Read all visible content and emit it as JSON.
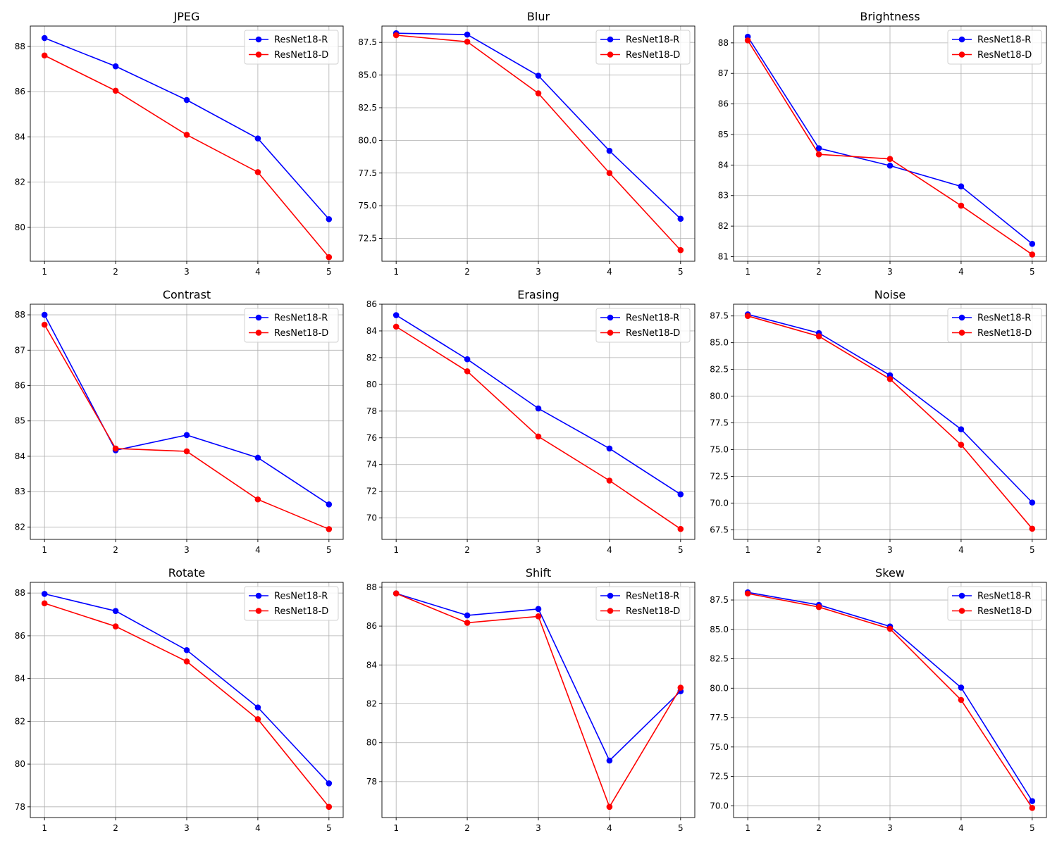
{
  "colors": {
    "ResNet18-R": "#0000ff",
    "ResNet18-D": "#ff0000"
  },
  "chart_data": [
    {
      "type": "line",
      "title": "JPEG",
      "x": [
        1,
        2,
        3,
        4,
        5
      ],
      "xlim": [
        0.8,
        5.2
      ],
      "ylim": [
        78.5,
        88.9
      ],
      "yticks": [
        "80",
        "82",
        "84",
        "86",
        "88"
      ],
      "series": [
        {
          "name": "ResNet18-R",
          "values": [
            88.37,
            87.12,
            85.63,
            83.93,
            80.36
          ]
        },
        {
          "name": "ResNet18-D",
          "values": [
            87.6,
            86.04,
            84.09,
            82.44,
            78.68
          ]
        }
      ]
    },
    {
      "type": "line",
      "title": "Blur",
      "x": [
        1,
        2,
        3,
        4,
        5
      ],
      "xlim": [
        0.8,
        5.2
      ],
      "ylim": [
        70.75,
        88.75
      ],
      "yticks": [
        "72.5",
        "75.0",
        "77.5",
        "80.0",
        "82.5",
        "85.0",
        "87.5"
      ],
      "series": [
        {
          "name": "ResNet18-R",
          "values": [
            88.2,
            88.1,
            84.95,
            79.2,
            74.0
          ]
        },
        {
          "name": "ResNet18-D",
          "values": [
            88.05,
            87.55,
            83.6,
            77.5,
            71.6
          ]
        }
      ]
    },
    {
      "type": "line",
      "title": "Brightness",
      "x": [
        1,
        2,
        3,
        4,
        5
      ],
      "xlim": [
        0.8,
        5.2
      ],
      "ylim": [
        80.85,
        88.55
      ],
      "yticks": [
        "81",
        "82",
        "83",
        "84",
        "85",
        "86",
        "87",
        "88"
      ],
      "series": [
        {
          "name": "ResNet18-R",
          "values": [
            88.2,
            84.55,
            83.98,
            83.3,
            81.42
          ]
        },
        {
          "name": "ResNet18-D",
          "values": [
            88.08,
            84.35,
            84.2,
            82.67,
            81.07
          ]
        }
      ]
    },
    {
      "type": "line",
      "title": "Contrast",
      "x": [
        1,
        2,
        3,
        4,
        5
      ],
      "xlim": [
        0.8,
        5.2
      ],
      "ylim": [
        81.65,
        88.3
      ],
      "yticks": [
        "82",
        "83",
        "84",
        "85",
        "86",
        "87",
        "88"
      ],
      "series": [
        {
          "name": "ResNet18-R",
          "values": [
            88.0,
            84.17,
            84.6,
            83.96,
            82.64
          ]
        },
        {
          "name": "ResNet18-D",
          "values": [
            87.72,
            84.22,
            84.14,
            82.78,
            81.94
          ]
        }
      ]
    },
    {
      "type": "line",
      "title": "Erasing",
      "x": [
        1,
        2,
        3,
        4,
        5
      ],
      "xlim": [
        0.8,
        5.2
      ],
      "ylim": [
        68.4,
        86.0
      ],
      "yticks": [
        "70",
        "72",
        "74",
        "76",
        "78",
        "80",
        "82",
        "84",
        "86"
      ],
      "series": [
        {
          "name": "ResNet18-R",
          "values": [
            85.18,
            81.88,
            78.2,
            75.2,
            71.77
          ]
        },
        {
          "name": "ResNet18-D",
          "values": [
            84.32,
            80.98,
            76.1,
            72.8,
            69.18
          ]
        }
      ]
    },
    {
      "type": "line",
      "title": "Noise",
      "x": [
        1,
        2,
        3,
        4,
        5
      ],
      "xlim": [
        0.8,
        5.2
      ],
      "ylim": [
        66.6,
        88.6
      ],
      "yticks": [
        "67.5",
        "70.0",
        "72.5",
        "75.0",
        "77.5",
        "80.0",
        "82.5",
        "85.0",
        "87.5"
      ],
      "series": [
        {
          "name": "ResNet18-R",
          "values": [
            87.65,
            85.9,
            81.95,
            76.9,
            70.05
          ]
        },
        {
          "name": "ResNet18-D",
          "values": [
            87.5,
            85.6,
            81.6,
            75.45,
            67.6
          ]
        }
      ]
    },
    {
      "type": "line",
      "title": "Rotate",
      "x": [
        1,
        2,
        3,
        4,
        5
      ],
      "xlim": [
        0.8,
        5.2
      ],
      "ylim": [
        77.5,
        88.5
      ],
      "yticks": [
        "78",
        "80",
        "82",
        "84",
        "86",
        "88"
      ],
      "series": [
        {
          "name": "ResNet18-R",
          "values": [
            87.96,
            87.16,
            85.33,
            82.65,
            79.1
          ]
        },
        {
          "name": "ResNet18-D",
          "values": [
            87.52,
            86.44,
            84.8,
            82.1,
            78.0
          ]
        }
      ]
    },
    {
      "type": "line",
      "title": "Shift",
      "x": [
        1,
        2,
        3,
        4,
        5
      ],
      "xlim": [
        0.8,
        5.2
      ],
      "ylim": [
        76.15,
        88.25
      ],
      "yticks": [
        "78",
        "80",
        "82",
        "84",
        "86",
        "88"
      ],
      "series": [
        {
          "name": "ResNet18-R",
          "values": [
            87.68,
            86.55,
            86.88,
            79.08,
            82.65
          ]
        },
        {
          "name": "ResNet18-D",
          "values": [
            87.68,
            86.17,
            86.5,
            76.7,
            82.83
          ]
        }
      ]
    },
    {
      "type": "line",
      "title": "Skew",
      "x": [
        1,
        2,
        3,
        4,
        5
      ],
      "xlim": [
        0.8,
        5.2
      ],
      "ylim": [
        69.0,
        89.0
      ],
      "yticks": [
        "70.0",
        "72.5",
        "75.0",
        "77.5",
        "80.0",
        "82.5",
        "85.0",
        "87.5"
      ],
      "series": [
        {
          "name": "ResNet18-R",
          "values": [
            88.15,
            87.08,
            85.25,
            80.05,
            70.4
          ]
        },
        {
          "name": "ResNet18-D",
          "values": [
            88.05,
            86.9,
            85.05,
            79.0,
            69.82
          ]
        }
      ]
    }
  ]
}
